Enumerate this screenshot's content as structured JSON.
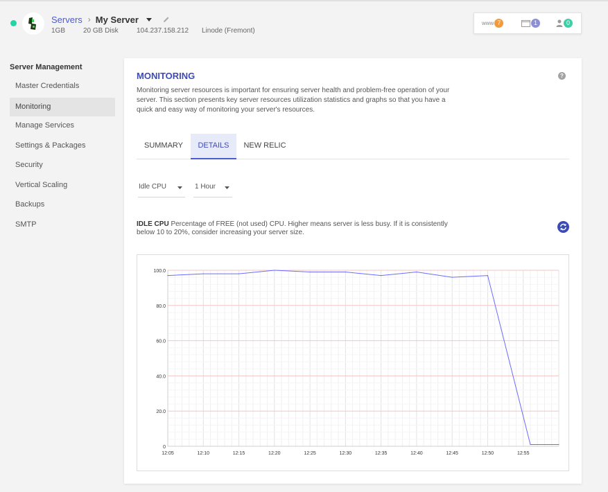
{
  "header": {
    "status_color": "#21d6a4",
    "breadcrumb_root": "Servers",
    "breadcrumb_sep": "›",
    "server_name": "My Server",
    "meta": [
      "1GB",
      "20 GB Disk",
      "104.237.158.212",
      "Linode (Fremont)"
    ],
    "badges": [
      {
        "label": "www",
        "count": "7",
        "color": "#f29a3c",
        "icon": "www-icon"
      },
      {
        "label": "",
        "count": "1",
        "color": "#8c8fd6",
        "icon": "folder-icon"
      },
      {
        "label": "",
        "count": "0",
        "color": "#3ecfa9",
        "icon": "user-icon"
      }
    ]
  },
  "sidebar": {
    "heading": "Server Management",
    "items": [
      {
        "label": "Master Credentials",
        "active": false
      },
      {
        "label": "Monitoring",
        "active": true
      },
      {
        "label": "Manage Services",
        "active": false
      },
      {
        "label": "Settings & Packages",
        "active": false
      },
      {
        "label": "Security",
        "active": false
      },
      {
        "label": "Vertical Scaling",
        "active": false
      },
      {
        "label": "Backups",
        "active": false
      },
      {
        "label": "SMTP",
        "active": false
      }
    ]
  },
  "main": {
    "title": "MONITORING",
    "help_glyph": "?",
    "description": "Monitoring server resources is important for ensuring server health and problem-free operation of your server. This section presents key server resources utilization statistics and graphs so that you have a quick and easy way of monitoring your server's resources.",
    "tabs": [
      {
        "label": "SUMMARY",
        "active": false
      },
      {
        "label": "DETAILS",
        "active": true
      },
      {
        "label": "NEW RELIC",
        "active": false
      }
    ],
    "metric_select": "Idle CPU",
    "range_select": "1 Hour",
    "metric_name": "IDLE CPU",
    "metric_description": "Percentage of FREE (not used) CPU. Higher means server is less busy. If it is consistently below 10 to 20%, consider increasing your server size.",
    "accent_color": "#3d4bb5"
  },
  "chart_data": {
    "type": "line",
    "title": "",
    "xlabel": "",
    "ylabel": "",
    "y_ticks": [
      "100.0",
      "80.0",
      "60.0",
      "40.0",
      "20.0",
      "0"
    ],
    "x_ticks": [
      "12:05",
      "12:10",
      "12:15",
      "12:20",
      "12:25",
      "12:30",
      "12:35",
      "12:40",
      "12:45",
      "12:50",
      "12:55"
    ],
    "ylim": [
      0,
      100
    ],
    "x_minutes_range": [
      5,
      60
    ],
    "grid": true,
    "line_color": "#6b6bff",
    "series": [
      {
        "x": [
          "12:05",
          "12:10",
          "12:15",
          "12:20",
          "12:25",
          "12:30",
          "12:35",
          "12:40",
          "12:45",
          "12:50",
          "12:56",
          "13:00"
        ],
        "values": [
          97,
          98,
          98,
          100,
          99,
          99,
          97,
          99,
          96,
          97,
          1,
          1
        ]
      }
    ]
  }
}
